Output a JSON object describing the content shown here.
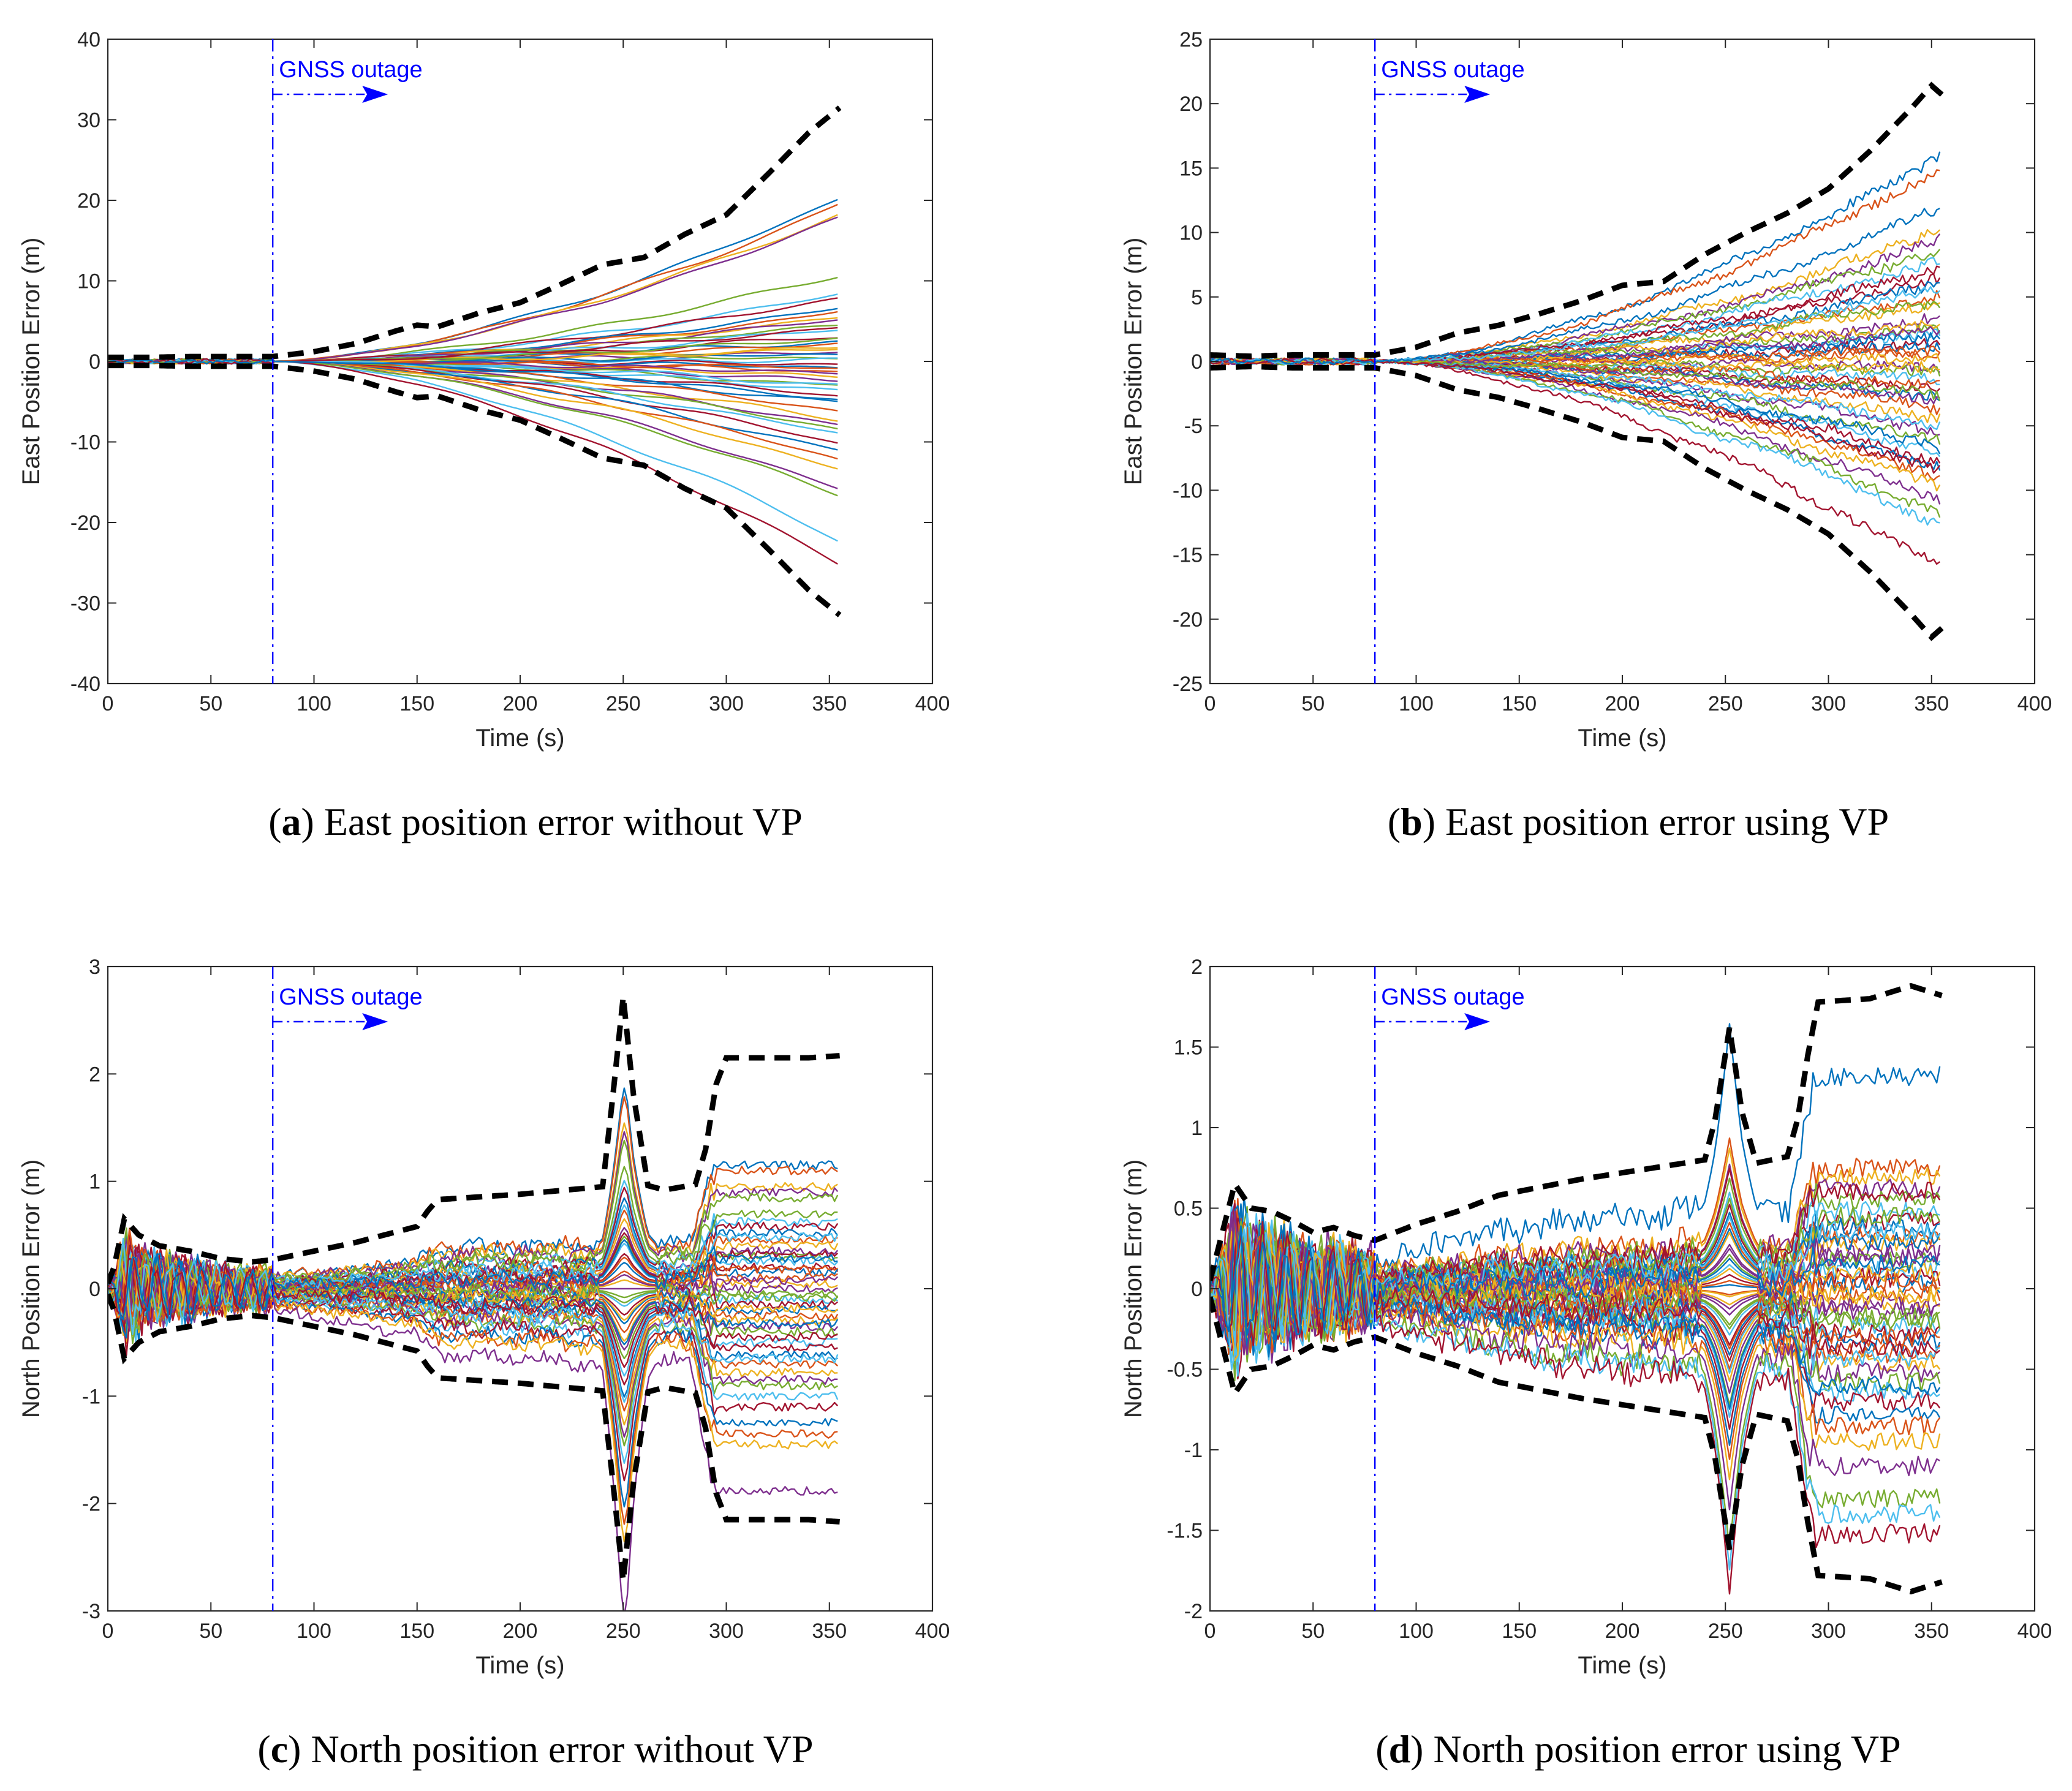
{
  "colors": {
    "series": [
      "#0072BD",
      "#D95319",
      "#EDB120",
      "#7E2F8E",
      "#77AC30",
      "#4DBEEE",
      "#A2142F"
    ],
    "envelope": "#000000",
    "outage": "#0000ff",
    "axis": "#262626"
  },
  "chart_data": [
    {
      "id": "a",
      "type": "line",
      "caption_letter": "a",
      "caption": "East position error without VP",
      "xlabel": "Time (s)",
      "ylabel": "East Position Error (m)",
      "xlim": [
        0,
        400
      ],
      "ylim": [
        -40,
        40
      ],
      "xticks": [
        0,
        50,
        100,
        150,
        200,
        250,
        300,
        350,
        400
      ],
      "yticks": [
        -40,
        -30,
        -20,
        -10,
        0,
        10,
        20,
        30,
        40
      ],
      "outage_time": 80,
      "outage_label": "GNSS outage",
      "end_time": 355,
      "n_runs": 50,
      "pattern": "east",
      "envelope": {
        "t": [
          0,
          20,
          40,
          60,
          80,
          100,
          120,
          140,
          150,
          160,
          180,
          200,
          220,
          240,
          260,
          280,
          300,
          320,
          340,
          355
        ],
        "upper": [
          0.5,
          0.5,
          0.6,
          0.6,
          0.6,
          1.2,
          2.2,
          3.8,
          4.5,
          4.3,
          6,
          7.3,
          9.6,
          12,
          12.9,
          15.8,
          18.2,
          23.2,
          28.4,
          31.5
        ]
      },
      "final_values": [
        20.3,
        19.5,
        18.4,
        17.9,
        10.7,
        8.4,
        7.9,
        6.6,
        6.1,
        5.5,
        5.2,
        4.6,
        3.9,
        3.1,
        2.6,
        2.2,
        1.7,
        1.1,
        0.6,
        0.2,
        -0.3,
        -0.7,
        -1.2,
        -1.9,
        -2.5,
        -3.1,
        -3.6,
        -4.3,
        -5.2,
        -6.1,
        -7.3,
        -7.9,
        -8.4,
        -9.1,
        -10.2,
        -11.3,
        -12.2,
        -13.4,
        -15.9,
        -16.6,
        -22.2,
        -25.4,
        0.9,
        -0.9,
        1.5,
        -1.5,
        2.9,
        -2.9,
        4.2,
        -4.8
      ],
      "noise": 0.0
    },
    {
      "id": "b",
      "type": "line",
      "caption_letter": "b",
      "caption": "East position error using VP",
      "xlabel": "Time (s)",
      "ylabel": "East Position Error (m)",
      "xlim": [
        0,
        400
      ],
      "ylim": [
        -25,
        25
      ],
      "xticks": [
        0,
        50,
        100,
        150,
        200,
        250,
        300,
        350,
        400
      ],
      "yticks": [
        -25,
        -20,
        -15,
        -10,
        -5,
        0,
        5,
        10,
        15,
        20,
        25
      ],
      "outage_time": 80,
      "outage_label": "GNSS outage",
      "end_time": 355,
      "n_runs": 50,
      "pattern": "east",
      "envelope": {
        "t": [
          0,
          20,
          40,
          60,
          80,
          100,
          120,
          140,
          160,
          180,
          200,
          220,
          240,
          260,
          280,
          300,
          320,
          340,
          350,
          355
        ],
        "upper": [
          0.5,
          0.4,
          0.5,
          0.5,
          0.5,
          1.1,
          2.2,
          2.8,
          3.7,
          4.7,
          5.9,
          6.2,
          8.3,
          10,
          11.5,
          13.4,
          16.3,
          19.6,
          21.4,
          20.7
        ]
      },
      "final_values": [
        16.1,
        15.0,
        10.2,
        9.4,
        8.8,
        7.9,
        6.6,
        6.0,
        5.2,
        4.4,
        3.4,
        2.6,
        2.1,
        1.5,
        1.1,
        0.6,
        0.2,
        -0.4,
        -0.9,
        -1.5,
        -2.2,
        -2.9,
        -3.6,
        -4.5,
        -5.4,
        -6.3,
        -7.1,
        -7.8,
        -8.3,
        -9.0,
        -9.9,
        -10.9,
        -11.9,
        -12.7,
        -16.1,
        1.9,
        -1.9,
        3.0,
        -3.0,
        4.8,
        -5.0,
        7.2,
        -6.8,
        0.9,
        -0.6,
        2.4,
        -2.6,
        5.6,
        -8.6,
        12.0
      ],
      "noise": 0.35
    },
    {
      "id": "c",
      "type": "line",
      "caption_letter": "c",
      "caption": "North position error without VP",
      "xlabel": "Time (s)",
      "ylabel": "North Position Error (m)",
      "xlim": [
        0,
        400
      ],
      "ylim": [
        -3,
        3
      ],
      "xticks": [
        0,
        50,
        100,
        150,
        200,
        250,
        300,
        350,
        400
      ],
      "yticks": [
        -3,
        -2,
        -1,
        0,
        1,
        2,
        3
      ],
      "outage_time": 80,
      "outage_label": "GNSS outage",
      "end_time": 355,
      "n_runs": 50,
      "pattern": "north",
      "envelope": {
        "t": [
          0,
          3,
          8,
          15,
          25,
          40,
          55,
          70,
          80,
          100,
          120,
          140,
          150,
          155,
          160,
          200,
          240,
          245,
          250,
          255,
          262,
          270,
          285,
          290,
          295,
          300,
          320,
          340,
          355
        ],
        "upper": [
          0.05,
          0.2,
          0.65,
          0.5,
          0.4,
          0.35,
          0.28,
          0.25,
          0.27,
          0.35,
          0.43,
          0.53,
          0.58,
          0.72,
          0.83,
          0.88,
          0.95,
          1.8,
          2.72,
          1.8,
          0.96,
          0.92,
          0.97,
          1.3,
          1.9,
          2.15,
          2.15,
          2.15,
          2.17
        ]
      },
      "final_values": [
        1.15,
        1.1,
        0.95,
        0.9,
        0.85,
        0.62,
        0.58,
        0.52,
        0.45,
        0.4,
        0.35,
        0.3,
        0.26,
        0.2,
        0.15,
        0.1,
        0.05,
        0.0,
        -0.05,
        -0.1,
        -0.15,
        -0.2,
        -0.25,
        -0.3,
        -0.35,
        -0.4,
        -0.5,
        -0.55,
        -0.62,
        -0.7,
        -0.78,
        -0.85,
        -0.9,
        -1.0,
        -1.1,
        -1.25,
        -1.35,
        -1.45,
        -1.88,
        0.7,
        -0.65,
        0.32,
        -0.32,
        0.18,
        -0.18,
        0.08,
        -0.08,
        0.48,
        -0.45,
        0.28
      ],
      "noise": 0.04
    },
    {
      "id": "d",
      "type": "line",
      "caption_letter": "d",
      "caption": "North position error using VP",
      "xlabel": "Time (s)",
      "ylabel": "North Position Error (m)",
      "xlim": [
        0,
        400
      ],
      "ylim": [
        -2,
        2
      ],
      "xticks": [
        0,
        50,
        100,
        150,
        200,
        250,
        300,
        350,
        400
      ],
      "yticks": [
        -2,
        -1.5,
        -1,
        -0.5,
        0,
        0.5,
        1,
        1.5,
        2
      ],
      "outage_time": 80,
      "outage_label": "GNSS outage",
      "end_time": 355,
      "n_runs": 50,
      "pattern": "north",
      "envelope": {
        "t": [
          0,
          5,
          12,
          20,
          30,
          40,
          50,
          60,
          70,
          80,
          100,
          120,
          140,
          160,
          180,
          200,
          220,
          240,
          245,
          252,
          258,
          265,
          280,
          285,
          290,
          295,
          320,
          340,
          355
        ],
        "upper": [
          0.05,
          0.3,
          0.65,
          0.5,
          0.48,
          0.42,
          0.35,
          0.38,
          0.33,
          0.3,
          0.4,
          0.48,
          0.58,
          0.63,
          0.68,
          0.72,
          0.76,
          0.8,
          1.05,
          1.62,
          1.1,
          0.78,
          0.82,
          1.05,
          1.45,
          1.78,
          1.8,
          1.88,
          1.82
        ]
      },
      "final_values": [
        1.32,
        0.75,
        0.7,
        0.62,
        0.55,
        0.48,
        0.42,
        0.38,
        0.33,
        0.28,
        0.22,
        0.17,
        0.12,
        0.07,
        0.02,
        -0.03,
        -0.08,
        -0.13,
        -0.18,
        -0.23,
        -0.28,
        -0.33,
        -0.4,
        -0.46,
        -0.52,
        -0.58,
        -0.64,
        -0.7,
        -0.78,
        -0.85,
        -0.95,
        -1.1,
        -1.3,
        -1.4,
        -1.52,
        0.3,
        -0.3,
        0.1,
        -0.1,
        0.45,
        -0.42,
        0.6,
        -0.6,
        0.04,
        -0.04,
        0.2,
        -0.2,
        0.36,
        -0.36,
        0.15
      ],
      "noise": 0.06
    }
  ]
}
